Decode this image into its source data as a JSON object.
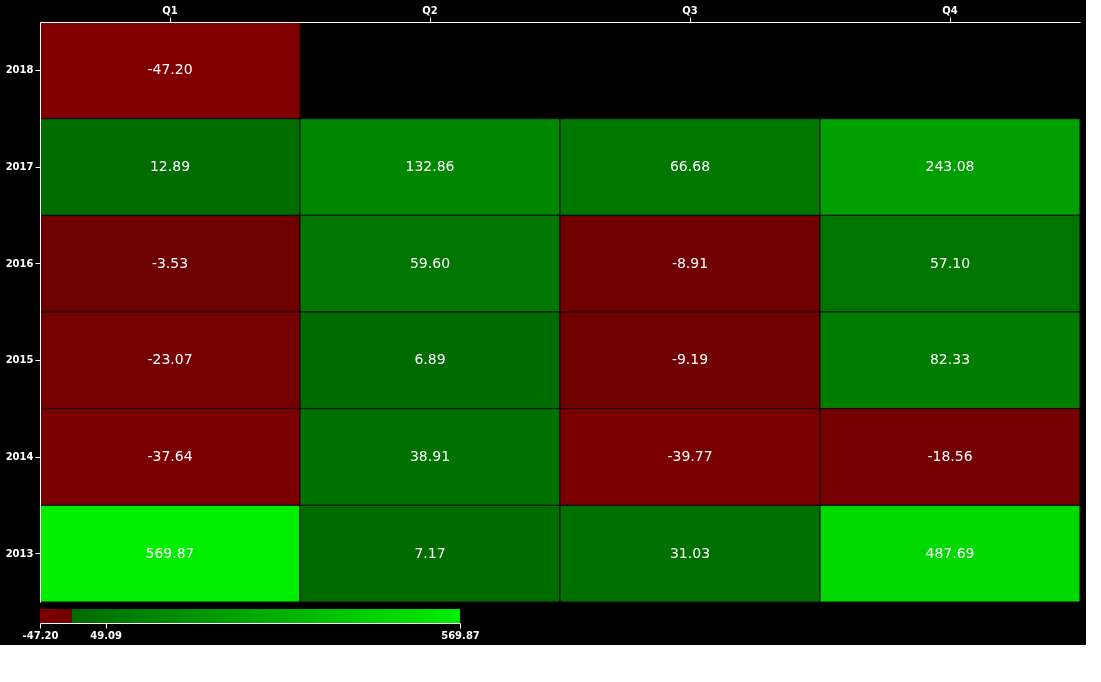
{
  "chart_data": {
    "type": "heatmap",
    "categories": [
      "Q1",
      "Q2",
      "Q3",
      "Q4"
    ],
    "y_categories": [
      "2018",
      "2017",
      "2016",
      "2015",
      "2014",
      "2013"
    ],
    "cells": [
      [
        -47.2,
        null,
        null,
        null
      ],
      [
        12.89,
        132.86,
        66.68,
        243.08
      ],
      [
        -3.53,
        59.6,
        -8.91,
        57.1
      ],
      [
        -23.07,
        6.89,
        -9.19,
        82.33
      ],
      [
        -37.64,
        38.91,
        -39.77,
        -18.56
      ],
      [
        569.87,
        7.17,
        31.03,
        487.69
      ]
    ],
    "cell_labels": [
      [
        "-47.20",
        null,
        null,
        null
      ],
      [
        "12.89",
        "132.86",
        "66.68",
        "243.08"
      ],
      [
        "-3.53",
        "59.60",
        "-8.91",
        "57.10"
      ],
      [
        "-23.07",
        "6.89",
        "-9.19",
        "82.33"
      ],
      [
        "-37.64",
        "38.91",
        "-39.77",
        "-18.56"
      ],
      [
        "569.87",
        "7.17",
        "31.03",
        "487.69"
      ]
    ],
    "clim": [
      -47.2,
      569.87
    ],
    "cticks": [
      {
        "value": -47.2,
        "label": "-47.20"
      },
      {
        "value": 49.09,
        "label": "49.09"
      },
      {
        "value": 569.87,
        "label": "569.87"
      }
    ],
    "colors": [
      "#800000",
      "#6e0000",
      "#006a00",
      "#00ee00"
    ]
  }
}
